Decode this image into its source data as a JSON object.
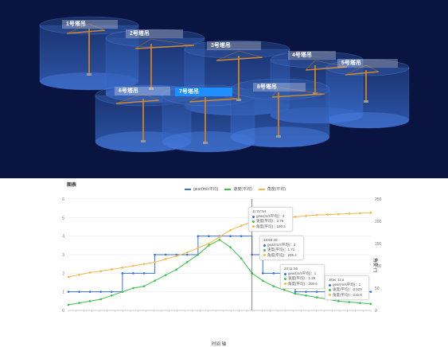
{
  "scene": {
    "cranes": [
      {
        "label": "1号塔吊"
      },
      {
        "label": "2号塔吊"
      },
      {
        "label": "3号塔吊"
      },
      {
        "label": "4号塔吊"
      },
      {
        "label": "5号塔吊"
      },
      {
        "label": "6号塔吊"
      },
      {
        "label": "7号塔吊",
        "active": true
      },
      {
        "label": "8号塔吊"
      }
    ]
  },
  "chart": {
    "title": "图表",
    "legend": [
      "gear(m/s平均)",
      "速度(平均)",
      "角度(平均)"
    ],
    "xlabel": "时间 轴",
    "ylabel_right": "角度 (°)",
    "y_left_ticks": [
      "0",
      "1",
      "2",
      "3",
      "4",
      "5",
      "6"
    ],
    "y_right_ticks": [
      "0",
      "50",
      "100",
      "150",
      "200",
      "250"
    ],
    "tooltips": [
      {
        "title": "11:07:54",
        "rows": [
          "gear(m/s平均)：4",
          "速度(平均)：3.76",
          "角度(平均)：180.3"
        ]
      },
      {
        "title": "18:03:30",
        "rows": [
          "gear(m/s平均)：3",
          "速度(平均)：1.71",
          "角度(平均)：205.4"
        ]
      },
      {
        "title": "20:11:55",
        "rows": [
          "gear(m/s平均)：1",
          "速度(平均)：1.29",
          "角度(平均)：200.6"
        ]
      },
      {
        "title": "Jitter 11:a",
        "rows": [
          "gear(m/s平均)：1",
          "速度(平均)：0.529",
          "角度(平均)：216.8"
        ]
      }
    ]
  },
  "chart_data": {
    "type": "line",
    "title": "图表",
    "xlabel": "时间 轴",
    "ylabel": "",
    "ylabel_right": "角度 (°)",
    "ylim": [
      0,
      6
    ],
    "ylim_right": [
      0,
      250
    ],
    "colors": [
      "#3a6fd8",
      "#3cbf4a",
      "#f0b84a"
    ],
    "series": [
      {
        "name": "gear(m/s平均)",
        "axis": "left",
        "values": [
          1,
          1,
          1,
          1,
          1,
          2,
          2,
          2,
          3,
          3,
          3,
          3,
          4,
          4,
          4,
          4,
          4,
          3,
          2,
          2,
          2,
          1,
          1,
          1,
          1,
          1,
          1,
          1,
          1
        ]
      },
      {
        "name": "速度(平均)",
        "axis": "left",
        "values": [
          0.3,
          0.4,
          0.5,
          0.6,
          0.8,
          1.0,
          1.2,
          1.3,
          1.6,
          1.9,
          2.2,
          2.6,
          3.0,
          3.5,
          3.8,
          3.4,
          2.8,
          2.0,
          1.6,
          1.3,
          1.1,
          0.9,
          0.8,
          0.7,
          0.6,
          0.5,
          0.45,
          0.4,
          0.35
        ]
      },
      {
        "name": "角度(平均)",
        "axis": "right",
        "values": [
          75,
          80,
          85,
          88,
          92,
          96,
          100,
          104,
          108,
          115,
          122,
          130,
          140,
          150,
          165,
          180,
          190,
          198,
          204,
          206,
          208,
          210,
          212,
          214,
          215,
          216,
          217,
          218,
          219
        ]
      }
    ]
  }
}
